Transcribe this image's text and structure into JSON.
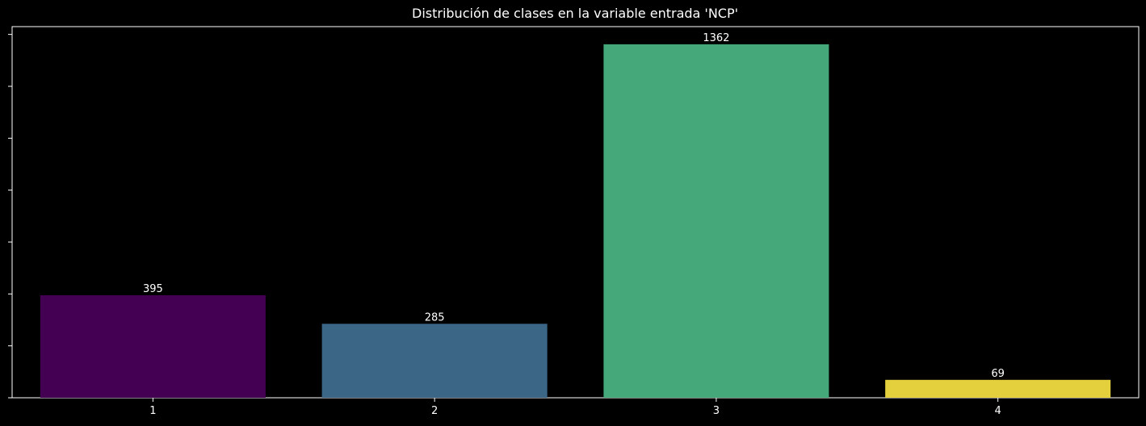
{
  "chart_data": {
    "type": "bar",
    "title": "Distribución de clases en la variable entrada 'NCP'",
    "xlabel": "",
    "ylabel": "",
    "categories": [
      "1",
      "2",
      "3",
      "4"
    ],
    "values": [
      395,
      285,
      1362,
      69
    ],
    "data_labels": [
      "395",
      "285",
      "1362",
      "69"
    ],
    "colors": [
      "#440154",
      "#3b6686",
      "#45a87a",
      "#e3d03c"
    ],
    "ylim": [
      0,
      1430
    ],
    "y_ticks": [
      0,
      200,
      400,
      600,
      800,
      1000,
      1200,
      1400
    ],
    "y_tick_labels_visible": false,
    "grid": false,
    "legend": "none",
    "background": "#000000",
    "axis_color": "#ffffff"
  }
}
